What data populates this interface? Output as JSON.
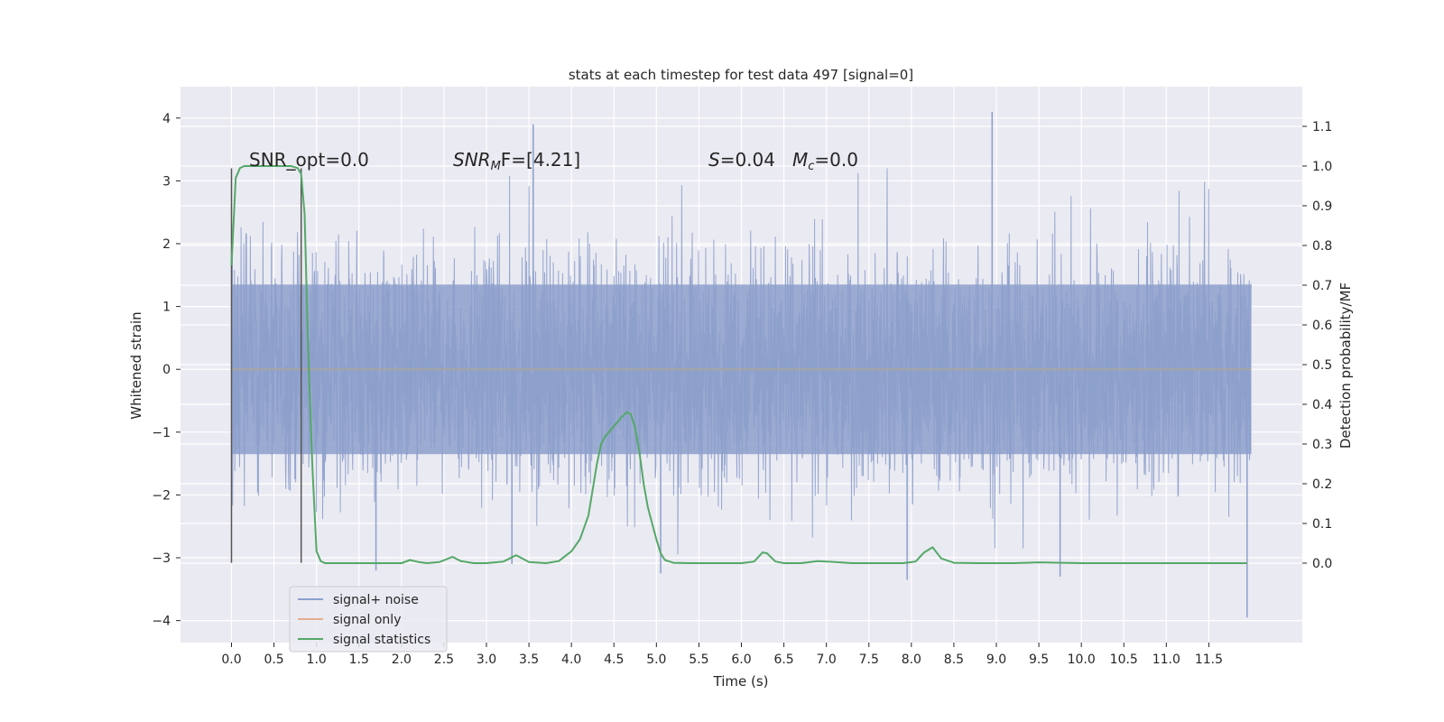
{
  "chart_data": {
    "type": "line",
    "title": "stats at each timestep for test data 497 [signal=0]",
    "xlabel": "Time (s)",
    "ylabel": "Whitened strain",
    "y2label": "Detection probability/MF",
    "xlim": [
      -0.6,
      12.6
    ],
    "ylim": [
      -4.35,
      4.5
    ],
    "y2lim": [
      -0.2,
      1.2
    ],
    "x_ticks": [
      0.0,
      0.5,
      1.0,
      1.5,
      2.0,
      2.5,
      3.0,
      3.5,
      4.0,
      4.5,
      5.0,
      5.5,
      6.0,
      6.5,
      7.0,
      7.5,
      8.0,
      8.5,
      9.0,
      9.5,
      10.0,
      10.5,
      11.0,
      11.5
    ],
    "x_tick_labels": [
      "0.0",
      "0.5",
      "1.0",
      "1.5",
      "2.0",
      "2.5",
      "3.0",
      "3.5",
      "4.0",
      "4.5",
      "5.0",
      "5.5",
      "6.0",
      "6.5",
      "7.0",
      "7.5",
      "8.0",
      "8.5",
      "9.0",
      "9.5",
      "10.0",
      "10.5",
      "11.0",
      "11.5"
    ],
    "y_ticks": [
      4,
      3,
      2,
      1,
      0,
      -1,
      -2,
      -3,
      -4
    ],
    "y_tick_labels": [
      "4",
      "3",
      "2",
      "1",
      "0",
      "−1",
      "−2",
      "−3",
      "−4"
    ],
    "y2_ticks": [
      1.1,
      1.0,
      0.9,
      0.8,
      0.7,
      0.6,
      0.5,
      0.4,
      0.3,
      0.2,
      0.1,
      0.0
    ],
    "y2_tick_labels": [
      "1.1",
      "1.0",
      "0.9",
      "0.8",
      "0.7",
      "0.6",
      "0.5",
      "0.4",
      "0.3",
      "0.2",
      "0.1",
      "0.0"
    ],
    "grid": true,
    "legend": {
      "placement": "lower-left",
      "entries": [
        {
          "label": "signal+ noise",
          "color": "#8c9fcb"
        },
        {
          "label": "signal only",
          "color": "#dd8452"
        },
        {
          "label": "signal statistics",
          "color": "#55a868"
        }
      ]
    },
    "annotations": {
      "snr_opt": "SNR_opt=0.0",
      "snr_mf_main": "SNR",
      "snr_mf_sub": "M",
      "snr_mf_rest": "F=[4.21]",
      "s_label": "S",
      "s_value": "=0.04",
      "mc_label": "M",
      "mc_sub": "c",
      "mc_value": "=0.0"
    },
    "window_markers_x": [
      0.0,
      0.82
    ],
    "noise": {
      "x_range": [
        0.0,
        12.0
      ],
      "core_band": [
        -1.35,
        1.35
      ],
      "outer_band": [
        -2.0,
        2.0
      ],
      "extremes": [
        [
          3.55,
          3.9
        ],
        [
          8.95,
          4.1
        ],
        [
          9.75,
          -3.3
        ],
        [
          7.95,
          -3.35
        ],
        [
          11.95,
          -3.95
        ],
        [
          5.05,
          -3.25
        ],
        [
          1.7,
          -3.2
        ],
        [
          3.3,
          -3.1
        ]
      ]
    },
    "series": [
      {
        "name": "signal statistics",
        "color": "#55a868",
        "x": [
          0.0,
          0.05,
          0.1,
          0.15,
          0.2,
          0.3,
          0.4,
          0.5,
          0.6,
          0.7,
          0.78,
          0.82,
          0.86,
          0.9,
          0.95,
          1.0,
          1.05,
          1.1,
          1.2,
          1.5,
          1.8,
          2.0,
          2.1,
          2.2,
          2.3,
          2.45,
          2.6,
          2.7,
          2.85,
          3.0,
          3.2,
          3.35,
          3.5,
          3.7,
          3.85,
          4.0,
          4.1,
          4.2,
          4.3,
          4.35,
          4.4,
          4.5,
          4.6,
          4.65,
          4.7,
          4.75,
          4.8,
          4.85,
          4.9,
          5.0,
          5.05,
          5.1,
          5.2,
          5.4,
          5.6,
          5.8,
          6.0,
          6.15,
          6.25,
          6.3,
          6.4,
          6.5,
          6.7,
          6.9,
          7.1,
          7.3,
          7.6,
          7.9,
          8.05,
          8.15,
          8.25,
          8.35,
          8.5,
          8.8,
          9.2,
          9.5,
          10.0,
          10.5,
          11.0,
          11.5,
          11.95
        ],
        "y": [
          0.75,
          0.97,
          0.995,
          1.0,
          1.0,
          1.0,
          1.0,
          1.0,
          1.0,
          1.0,
          0.995,
          0.98,
          0.88,
          0.55,
          0.25,
          0.03,
          0.005,
          0.0,
          0.0,
          0.0,
          0.0,
          0.0,
          0.008,
          0.003,
          0.0,
          0.003,
          0.016,
          0.005,
          0.0,
          0.0,
          0.004,
          0.02,
          0.003,
          0.0,
          0.005,
          0.03,
          0.06,
          0.12,
          0.25,
          0.3,
          0.32,
          0.345,
          0.37,
          0.38,
          0.375,
          0.34,
          0.28,
          0.2,
          0.14,
          0.06,
          0.025,
          0.008,
          0.001,
          0.0,
          0.0,
          0.0,
          0.0,
          0.004,
          0.027,
          0.025,
          0.004,
          0.0,
          0.0,
          0.005,
          0.003,
          0.0,
          0.0,
          0.0,
          0.004,
          0.027,
          0.04,
          0.012,
          0.001,
          0.0,
          0.0,
          0.002,
          0.0,
          0.0,
          0.0,
          0.0,
          0.0
        ]
      }
    ]
  }
}
